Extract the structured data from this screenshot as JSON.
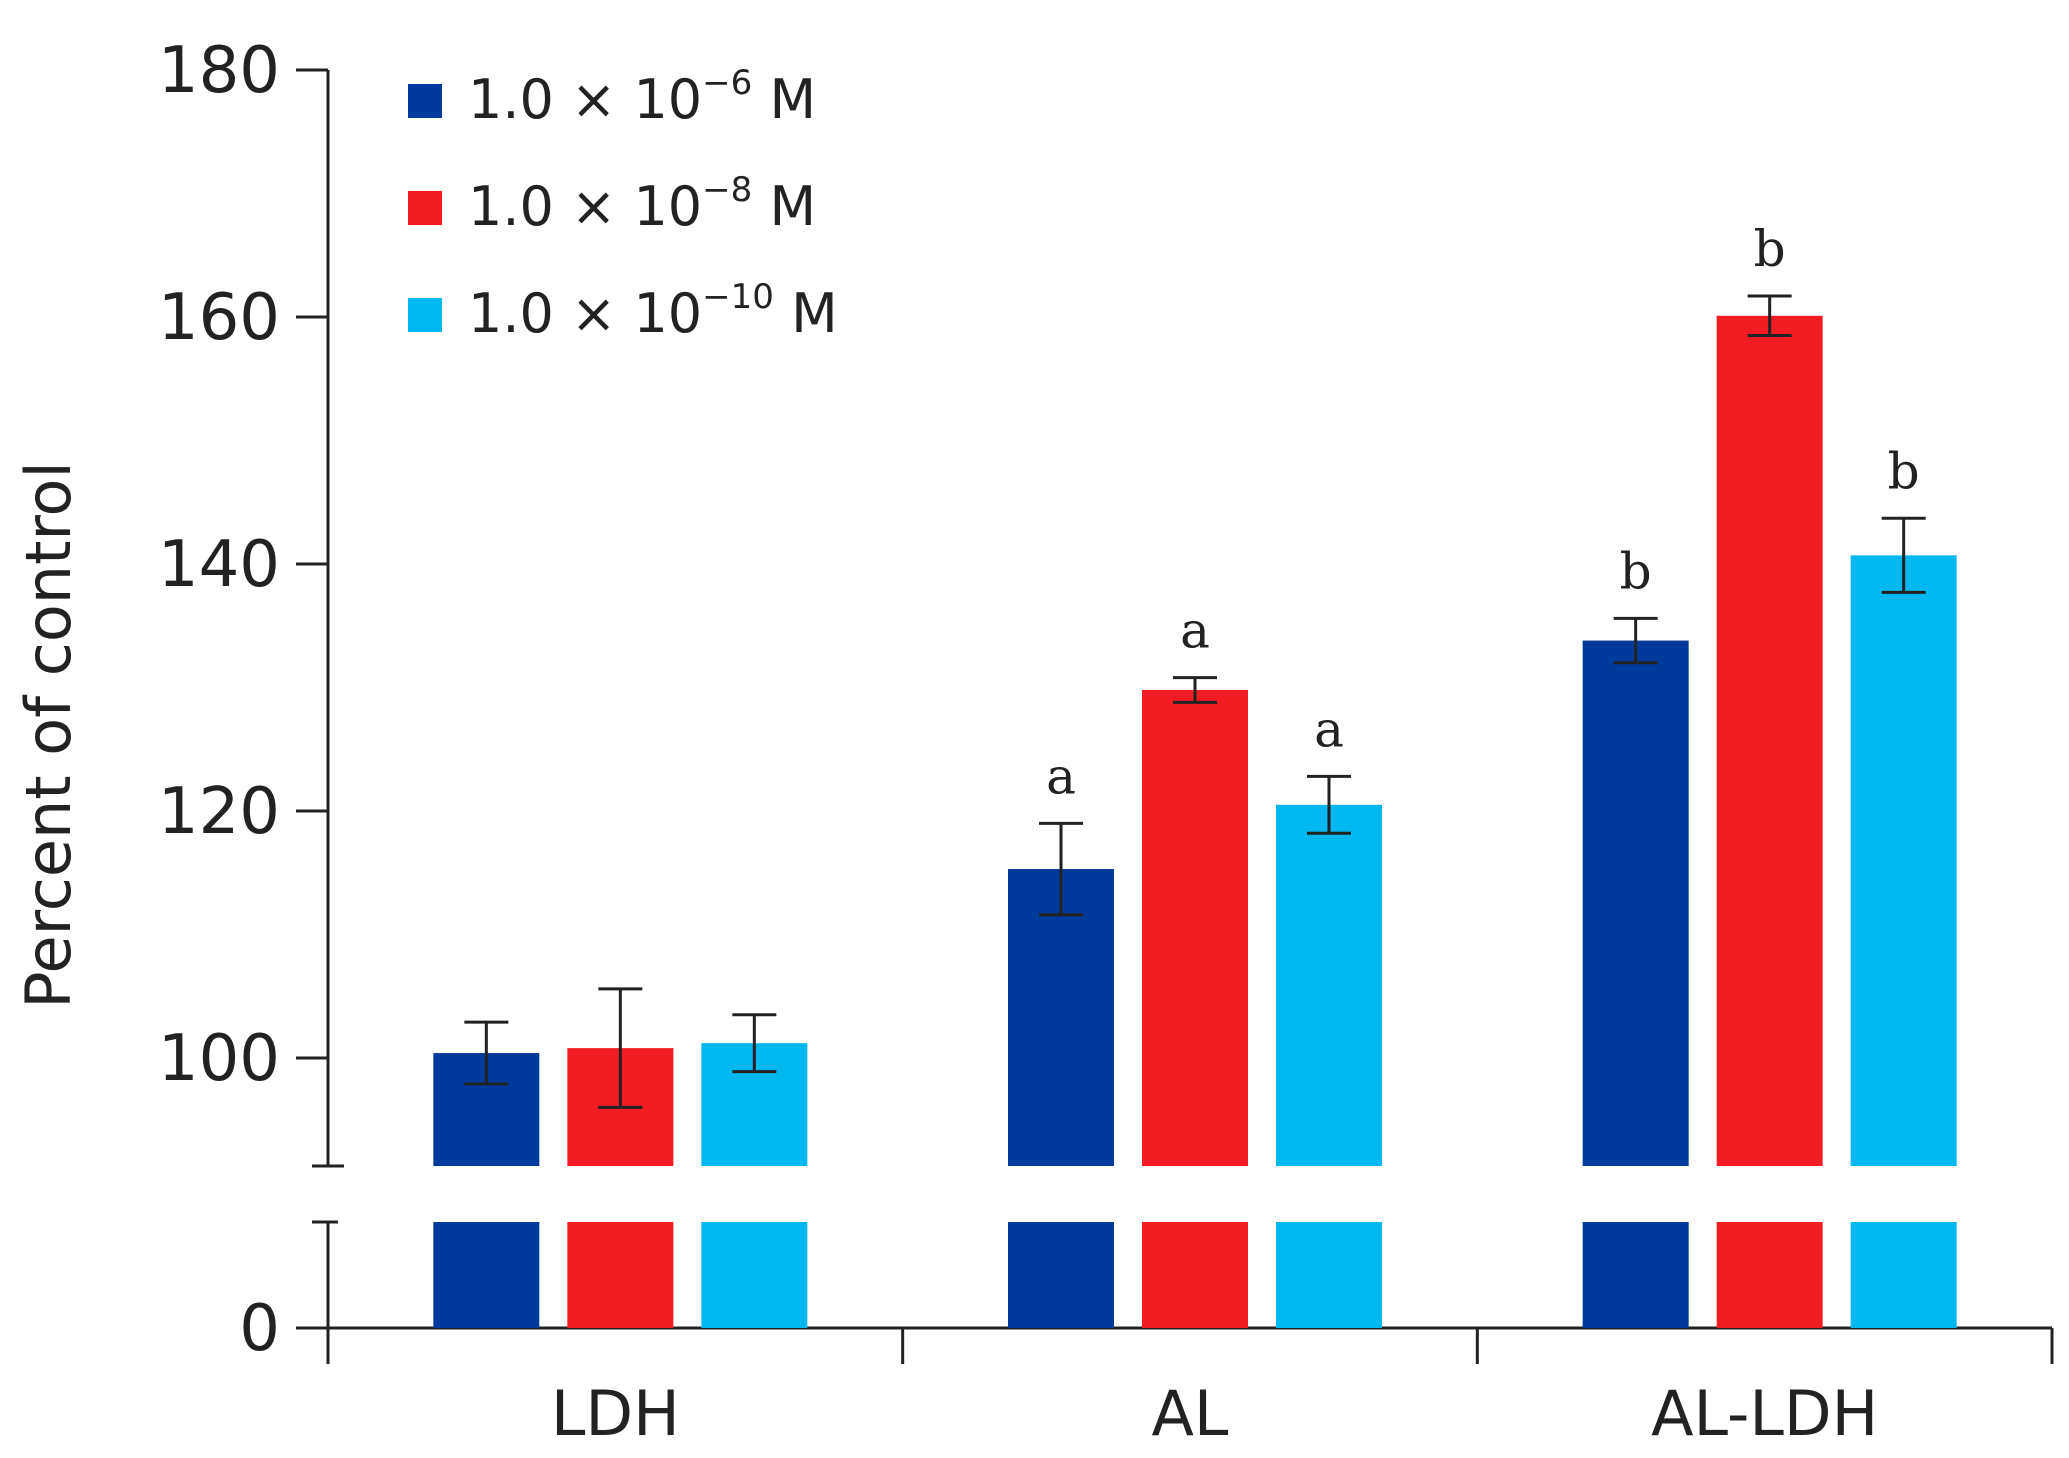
{
  "chart_data": {
    "type": "bar",
    "title": "",
    "xlabel": "",
    "ylabel": "Percent of control",
    "ylim": [
      0,
      180
    ],
    "axis_break": {
      "lower_range": [
        0,
        8
      ],
      "upper_range": [
        91,
        180
      ]
    },
    "yticks": [
      0,
      100,
      120,
      140,
      160,
      180
    ],
    "ytick_labels": [
      "0",
      "100",
      "120",
      "140",
      "160",
      "180"
    ],
    "categories": [
      "LDH",
      "AL",
      "AL-LDH"
    ],
    "legend_position": "top-left",
    "series": [
      {
        "name": "1.0 × 10−6 M",
        "legend_base": "1.0 × 10",
        "legend_exp": "−6",
        "legend_unit": " M",
        "color": "#003a9c",
        "values": [
          100.4,
          115.3,
          133.8
        ],
        "errors": [
          2.5,
          3.7,
          1.8
        ],
        "annotations": [
          "",
          "a",
          "b"
        ]
      },
      {
        "name": "1.0 × 10−8 M",
        "legend_base": "1.0 × 10",
        "legend_exp": "−8",
        "legend_unit": " M",
        "color": "#f21c23",
        "values": [
          100.8,
          129.8,
          160.1
        ],
        "errors": [
          4.8,
          1.0,
          1.6
        ],
        "annotations": [
          "",
          "a",
          "b"
        ]
      },
      {
        "name": "1.0 × 10−10 M",
        "legend_base": "1.0 × 10",
        "legend_exp": "−10",
        "legend_unit": " M",
        "color": "#00b8f0",
        "values": [
          101.2,
          120.5,
          140.7
        ],
        "errors": [
          2.3,
          2.3,
          3.0
        ],
        "annotations": [
          "",
          "a",
          "b"
        ]
      }
    ]
  }
}
